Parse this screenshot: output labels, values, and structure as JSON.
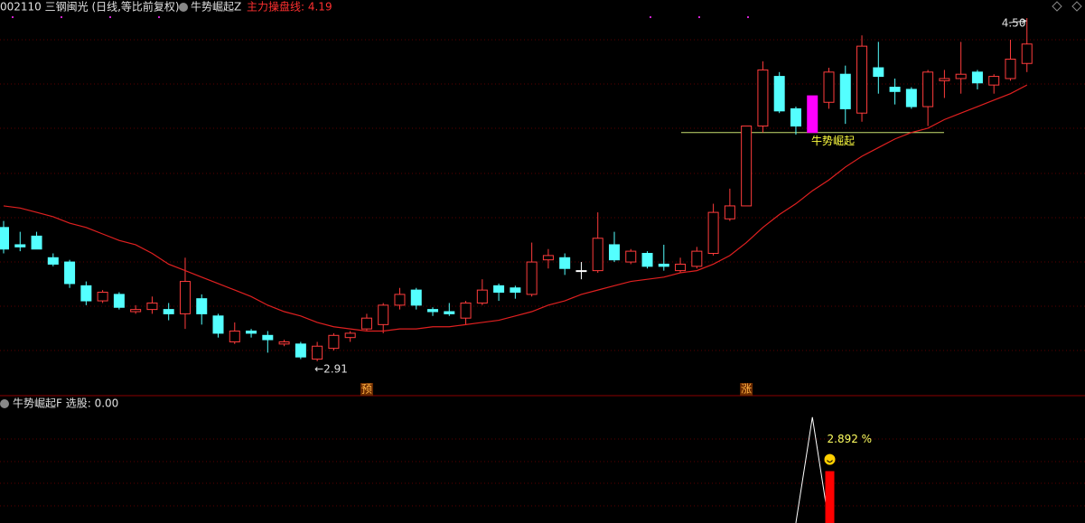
{
  "chart_data": {
    "type": "candlestick",
    "title": "002110 三钢闽光 (日线,等比前复权)",
    "indicator": "牛势崛起Z",
    "ma_label": "主力操盘线: 4.19",
    "lower_title": "牛势崛起F 选股: 0.00",
    "open": [
      3.53,
      3.45,
      3.49,
      3.39,
      3.37,
      3.26,
      3.19,
      3.22,
      3.14,
      3.15,
      3.15,
      3.13,
      3.2,
      3.12,
      3.0,
      3.05,
      3.03,
      2.99,
      2.99,
      2.92,
      2.97,
      3.02,
      3.06,
      3.08,
      3.17,
      3.24,
      3.15,
      3.14,
      3.11,
      3.18,
      3.26,
      3.25,
      3.22,
      3.38,
      3.39,
      3.33,
      3.33,
      3.45,
      3.37,
      3.41,
      3.36,
      3.33,
      3.35,
      3.41,
      3.57,
      3.63,
      4.0,
      4.23,
      4.08,
      3.97,
      4.11,
      4.24,
      4.06,
      4.27,
      4.18,
      4.17,
      4.09,
      4.21,
      4.22,
      4.25,
      4.19,
      4.22,
      4.29
    ],
    "high": [
      3.56,
      3.51,
      3.51,
      3.41,
      3.38,
      3.28,
      3.24,
      3.23,
      3.17,
      3.21,
      3.18,
      3.39,
      3.22,
      3.13,
      3.09,
      3.06,
      3.05,
      3.01,
      3.0,
      3.0,
      3.04,
      3.05,
      3.13,
      3.18,
      3.25,
      3.25,
      3.16,
      3.18,
      3.19,
      3.29,
      3.27,
      3.26,
      3.46,
      3.43,
      3.41,
      3.37,
      3.6,
      3.51,
      3.43,
      3.42,
      3.45,
      3.39,
      3.44,
      3.64,
      3.71,
      4.0,
      4.3,
      4.25,
      4.09,
      4.14,
      4.27,
      4.28,
      4.42,
      4.39,
      4.22,
      4.18,
      4.26,
      4.26,
      4.39,
      4.26,
      4.24,
      4.4,
      4.5
    ],
    "low": [
      3.41,
      3.42,
      3.43,
      3.35,
      3.25,
      3.17,
      3.18,
      3.15,
      3.13,
      3.13,
      3.1,
      3.06,
      3.08,
      3.02,
      2.99,
      3.02,
      2.95,
      2.98,
      2.92,
      2.91,
      2.96,
      3.0,
      3.05,
      3.04,
      3.15,
      3.15,
      3.12,
      3.12,
      3.08,
      3.17,
      3.19,
      3.2,
      3.21,
      3.34,
      3.31,
      3.29,
      3.32,
      3.37,
      3.36,
      3.34,
      3.33,
      3.32,
      3.34,
      3.4,
      3.56,
      3.63,
      3.97,
      4.06,
      3.96,
      3.97,
      4.08,
      4.01,
      4.02,
      4.15,
      4.1,
      4.08,
      4.0,
      4.13,
      4.15,
      4.17,
      4.15,
      4.21,
      4.25
    ],
    "close": [
      3.43,
      3.44,
      3.43,
      3.36,
      3.27,
      3.19,
      3.23,
      3.16,
      3.15,
      3.18,
      3.13,
      3.28,
      3.13,
      3.04,
      3.05,
      3.04,
      3.01,
      3.0,
      2.93,
      2.98,
      3.03,
      3.04,
      3.11,
      3.17,
      3.22,
      3.17,
      3.14,
      3.13,
      3.18,
      3.24,
      3.23,
      3.23,
      3.37,
      3.4,
      3.34,
      3.33,
      3.48,
      3.38,
      3.42,
      3.35,
      3.35,
      3.36,
      3.42,
      3.6,
      3.63,
      4.0,
      4.26,
      4.07,
      4.0,
      4.14,
      4.25,
      4.08,
      4.37,
      4.23,
      4.16,
      4.09,
      4.25,
      4.22,
      4.24,
      4.2,
      4.23,
      4.31,
      4.38
    ],
    "ma": {
      "color": "#e02020",
      "values": [
        3.63,
        3.62,
        3.6,
        3.58,
        3.55,
        3.53,
        3.5,
        3.47,
        3.45,
        3.41,
        3.36,
        3.33,
        3.3,
        3.27,
        3.24,
        3.21,
        3.17,
        3.14,
        3.12,
        3.09,
        3.07,
        3.06,
        3.05,
        3.05,
        3.06,
        3.06,
        3.07,
        3.07,
        3.08,
        3.09,
        3.1,
        3.12,
        3.14,
        3.17,
        3.19,
        3.22,
        3.24,
        3.26,
        3.28,
        3.29,
        3.3,
        3.32,
        3.33,
        3.36,
        3.4,
        3.46,
        3.53,
        3.59,
        3.64,
        3.7,
        3.75,
        3.81,
        3.86,
        3.9,
        3.94,
        3.97,
        3.99,
        4.03,
        4.06,
        4.09,
        4.12,
        4.15,
        4.19
      ]
    },
    "up_color": "#ff3c3c",
    "down_color": "#54ffff",
    "flat_color": "#ffffff",
    "highlight": {
      "index": 49,
      "color": "#ff00ff"
    },
    "ylim": [
      2.755,
      4.584
    ],
    "low_label": "←2.91",
    "high_label": "4.50",
    "level": {
      "label": "牛势崛起",
      "value": 3.97,
      "color": "#c8e070"
    },
    "markers": [
      {
        "label": "预",
        "index": 22
      },
      {
        "label": "涨",
        "index": 45
      }
    ],
    "lower": {
      "ylim": [
        0,
        7
      ],
      "signal": {
        "color": "#ffffff",
        "values": [
          null,
          null,
          null,
          null,
          null,
          null,
          null,
          null,
          null,
          null,
          null,
          null,
          null,
          null,
          null,
          null,
          null,
          null,
          null,
          null,
          null,
          null,
          null,
          null,
          null,
          null,
          null,
          null,
          null,
          null,
          null,
          null,
          null,
          null,
          null,
          null,
          null,
          null,
          null,
          null,
          null,
          null,
          null,
          null,
          null,
          null,
          null,
          null,
          0,
          5.9,
          0,
          null,
          null,
          null,
          null,
          null,
          null,
          null,
          null,
          null,
          null,
          null,
          null
        ]
      },
      "bars": {
        "color": "#ff0000",
        "values": [
          null,
          null,
          null,
          null,
          null,
          null,
          null,
          null,
          null,
          null,
          null,
          null,
          null,
          null,
          null,
          null,
          null,
          null,
          null,
          null,
          null,
          null,
          null,
          null,
          null,
          null,
          null,
          null,
          null,
          null,
          null,
          null,
          null,
          null,
          null,
          null,
          null,
          null,
          null,
          null,
          null,
          null,
          null,
          null,
          null,
          null,
          null,
          null,
          null,
          null,
          2.892,
          null,
          null,
          null,
          null,
          null,
          null,
          null,
          null,
          null,
          null,
          null,
          null
        ],
        "value_labels": [
          null,
          null,
          null,
          null,
          null,
          null,
          null,
          null,
          null,
          null,
          null,
          null,
          null,
          null,
          null,
          null,
          null,
          null,
          null,
          null,
          null,
          null,
          null,
          null,
          null,
          null,
          null,
          null,
          null,
          null,
          null,
          null,
          null,
          null,
          null,
          null,
          null,
          null,
          null,
          null,
          null,
          null,
          null,
          null,
          null,
          null,
          null,
          null,
          null,
          null,
          "2.892 %",
          null,
          null,
          null,
          null,
          null,
          null,
          null,
          null,
          null,
          null,
          null,
          null
        ]
      }
    }
  }
}
